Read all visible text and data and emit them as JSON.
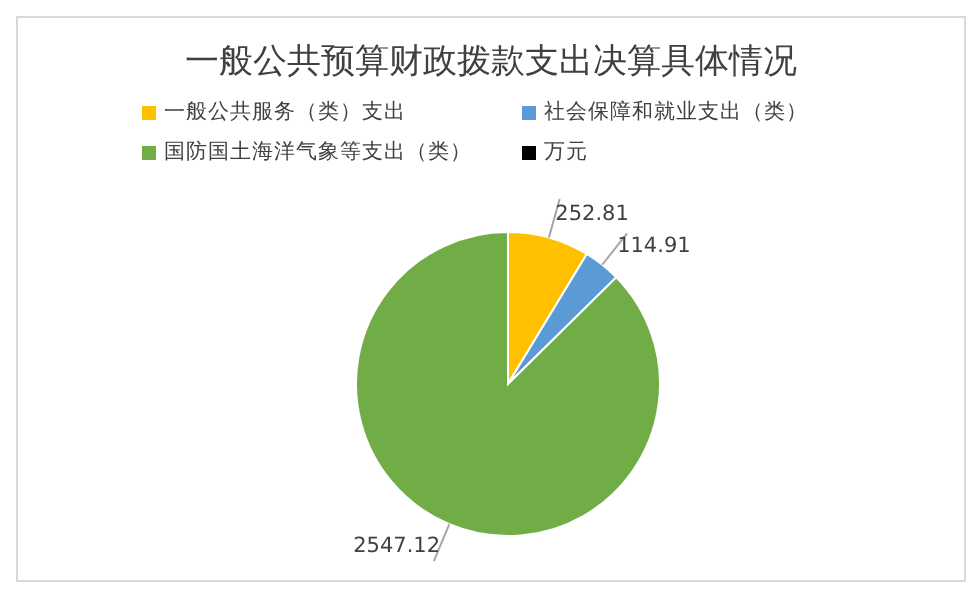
{
  "chart_data": {
    "type": "pie",
    "title": "一般公共预算财政拨款支出决算具体情况",
    "categories": [
      "一般公共服务（类）支出",
      "社会保障和就业支出（类）",
      "国防国土海洋气象等支出（类）"
    ],
    "values": [
      252.81,
      114.91,
      2547.12
    ],
    "colors": [
      "#ffc000",
      "#5b9bd5",
      "#70ad47"
    ],
    "data_labels": true,
    "legend": "top",
    "annotations": [
      "万元"
    ]
  }
}
